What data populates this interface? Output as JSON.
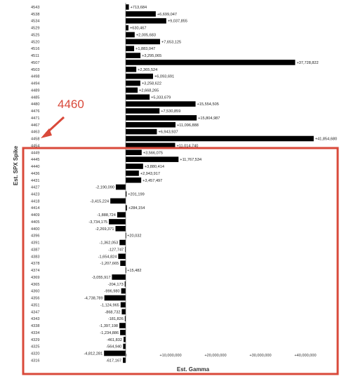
{
  "chart_data": {
    "type": "bar",
    "orientation": "horizontal",
    "title": "",
    "xlabel": "Est. Gamma",
    "ylabel": "Est. SPX Spike",
    "xlim": [
      -6000000,
      43000000
    ],
    "x_ticks": [
      {
        "value": 0,
        "label": "0"
      },
      {
        "value": 10000000,
        "label": "+10,000,000"
      },
      {
        "value": 20000000,
        "label": "+20,000,000"
      },
      {
        "value": 30000000,
        "label": "+30,000,000"
      },
      {
        "value": 40000000,
        "label": "+40,000,000"
      }
    ],
    "bar_color": "#000000",
    "grid": false,
    "categories": [
      "4543",
      "4538",
      "4534",
      "4529",
      "4525",
      "4520",
      "4516",
      "4511",
      "4507",
      "4503",
      "4498",
      "4494",
      "4489",
      "4485",
      "4480",
      "4476",
      "4471",
      "4467",
      "4463",
      "4458",
      "4454",
      "4449",
      "4445",
      "4440",
      "4436",
      "4431",
      "4427",
      "4423",
      "4418",
      "4414",
      "4409",
      "4405",
      "4400",
      "4396",
      "4391",
      "4387",
      "4383",
      "4378",
      "4374",
      "4369",
      "4365",
      "4360",
      "4356",
      "4351",
      "4347",
      "4343",
      "4338",
      "4334",
      "4329",
      "4325",
      "4320",
      "4316"
    ],
    "values": [
      713684,
      6699047,
      9037855,
      630467,
      2005683,
      7653125,
      1883047,
      3295065,
      37728822,
      2365524,
      6093691,
      3258622,
      2668265,
      5333679,
      15554505,
      7530859,
      15804987,
      11096888,
      6943937,
      41854680,
      11014740,
      3566075,
      11767534,
      3880414,
      2943917,
      3457497,
      -2190090,
      201199,
      -3415224,
      284154,
      -1888724,
      -3734175,
      -2269371,
      20032,
      -1362053,
      -127747,
      -1654824,
      -1207665,
      15482,
      -3055917,
      -204173,
      -996980,
      -4738789,
      -1124965,
      -868732,
      -181826,
      -1397198,
      -1234886,
      -461832,
      -564940,
      -4812281,
      -617167
    ],
    "value_labels": [
      "+713,684",
      "+6,699,047",
      "+9,037,855",
      "+630,467",
      "+2,005,683",
      "+7,653,125",
      "+1,883,047",
      "+3,295,065",
      "+37,728,822",
      "+2,365,524",
      "+6,093,691",
      "+3,258,622",
      "+2,668,265",
      "+5,333,679",
      "+15,554,505",
      "+7,530,859",
      "+15,804,987",
      "+11,096,888",
      "+6,943,937",
      "+41,854,680",
      "+11,014,740",
      "+3,566,075",
      "+11,767,534",
      "+3,880,414",
      "+2,943,917",
      "+3,457,497",
      "-2,190,090",
      "+201,199",
      "-3,415,224",
      "+284,154",
      "-1,888,724",
      "-3,734,175",
      "-2,269,371",
      "+20,032",
      "-1,362,053",
      "-127,747",
      "-1,654,824",
      "-1,207,665",
      "+15,482",
      "-3,055,917",
      "-204,173",
      "-996,980",
      "-4,738,789",
      "-1,124,965",
      "-868,732",
      "-181,826",
      "-1,397,198",
      "-1,234,886",
      "-461,832",
      "-564,940",
      "-4,812,281",
      "-617,167"
    ]
  },
  "annotation": {
    "label": "4460",
    "color": "#d9493a",
    "highlight_range": [
      "4449",
      "4316"
    ]
  }
}
